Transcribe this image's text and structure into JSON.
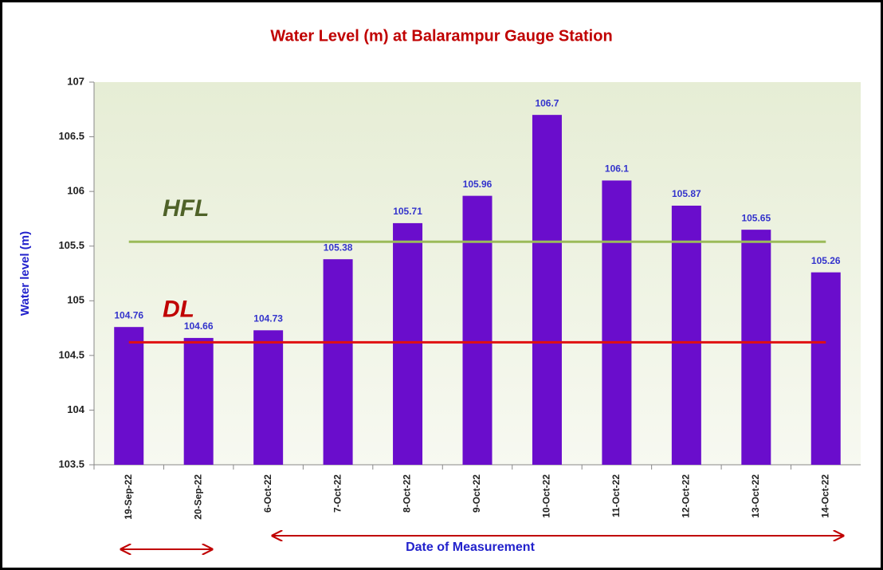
{
  "chart_data": {
    "type": "bar",
    "title": "Water Level (m) at Balarampur Gauge Station",
    "x_label": "Date  of Measurement",
    "y_label": "Water level (m)",
    "categories": [
      "19-Sep-22",
      "20-Sep-22",
      "6-Oct-22",
      "7-Oct-22",
      "8-Oct-22",
      "9-Oct-22",
      "10-Oct-22",
      "11-Oct-22",
      "12-Oct-22",
      "13-Oct-22",
      "14-Oct-22"
    ],
    "values": [
      104.76,
      104.66,
      104.73,
      105.38,
      105.71,
      105.96,
      106.7,
      106.1,
      105.87,
      105.65,
      105.26
    ],
    "color": "#6a0dcc",
    "ylim": [
      103.5,
      107
    ],
    "yticks": [
      103.5,
      104,
      104.5,
      105,
      105.5,
      106,
      106.5,
      107
    ],
    "reference_lines": [
      {
        "label": "HFL",
        "value": 105.54,
        "color": "#9bbb59",
        "label_color": "#4f6228"
      },
      {
        "label": "DL",
        "value": 104.62,
        "color": "#e01010",
        "label_color": "#c00000"
      }
    ]
  }
}
